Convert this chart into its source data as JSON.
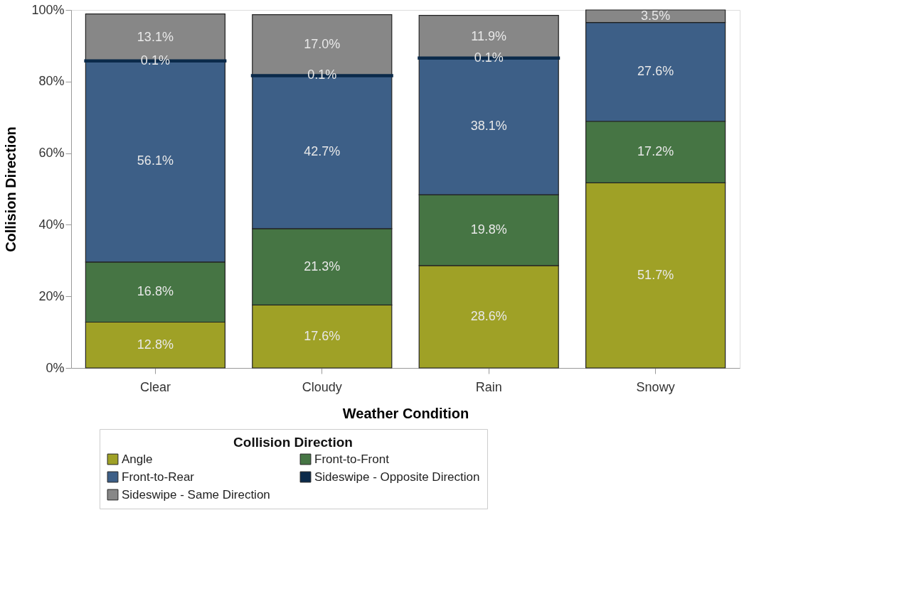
{
  "chart_data": {
    "type": "bar",
    "stacked": true,
    "xlabel": "Weather Condition",
    "ylabel": "Collision Direction",
    "legend_title": "Collision Direction",
    "categories": [
      "Clear",
      "Cloudy",
      "Rain",
      "Snowy"
    ],
    "series": [
      {
        "name": "Angle",
        "color": "#9fa126",
        "values": [
          12.8,
          17.6,
          28.6,
          51.7
        ]
      },
      {
        "name": "Front-to-Front",
        "color": "#467544",
        "values": [
          16.8,
          21.3,
          19.8,
          17.2
        ]
      },
      {
        "name": "Front-to-Rear",
        "color": "#3d5f87",
        "values": [
          56.1,
          42.7,
          38.1,
          27.6
        ]
      },
      {
        "name": "Sideswipe - Opposite Direction",
        "color": "#0b2a4a",
        "values": [
          0.1,
          0.1,
          0.1,
          null
        ]
      },
      {
        "name": "Sideswipe - Same Direction",
        "color": "#878787",
        "values": [
          13.1,
          17.0,
          11.9,
          3.5
        ]
      }
    ],
    "ylim": [
      0,
      100
    ],
    "yticks": [
      {
        "value": 0,
        "label": "0%"
      },
      {
        "value": 20,
        "label": "20%"
      },
      {
        "value": 40,
        "label": "40%"
      },
      {
        "value": 60,
        "label": "60%"
      },
      {
        "value": 80,
        "label": "80%"
      },
      {
        "value": 100,
        "label": "100%"
      }
    ],
    "value_labels": [
      [
        "12.8%",
        "17.6%",
        "28.6%",
        "51.7%"
      ],
      [
        "16.8%",
        "21.3%",
        "19.8%",
        "17.2%"
      ],
      [
        "56.1%",
        "42.7%",
        "38.1%",
        "27.6%"
      ],
      [
        "0.1%",
        "0.1%",
        "0.1%",
        null
      ],
      [
        "13.1%",
        "17.0%",
        "11.9%",
        "3.5%"
      ]
    ],
    "grid": false,
    "legend": "bottom"
  }
}
